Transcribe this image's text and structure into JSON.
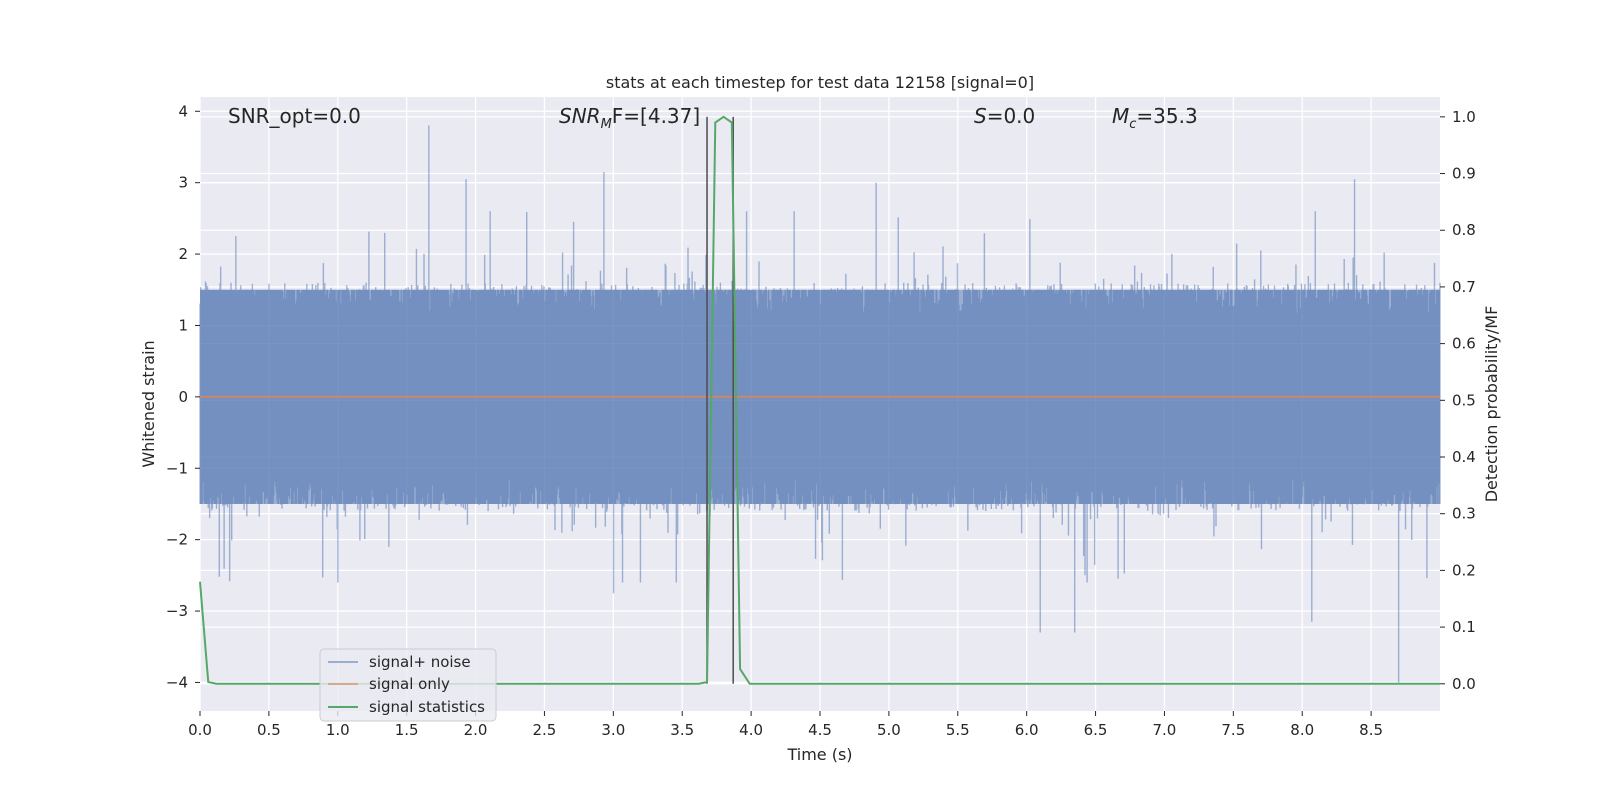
{
  "chart_data": {
    "type": "line",
    "title": "stats at each timestep for test data 12158 [signal=0]",
    "xlabel": "Time (s)",
    "ylabel": "Whitened strain",
    "y2label": "Detection probability/MF",
    "xlim": [
      0,
      9.0
    ],
    "ylim": [
      -4.4,
      4.2
    ],
    "y2lim": [
      -0.048,
      1.035
    ],
    "x_ticks": [
      0.0,
      0.5,
      1.0,
      1.5,
      2.0,
      2.5,
      3.0,
      3.5,
      4.0,
      4.5,
      5.0,
      5.5,
      6.0,
      6.5,
      7.0,
      7.5,
      8.0,
      8.5
    ],
    "x_tick_labels": [
      "0.0",
      "0.5",
      "1.0",
      "1.5",
      "2.0",
      "2.5",
      "3.0",
      "3.5",
      "4.0",
      "4.5",
      "5.0",
      "5.5",
      "6.0",
      "6.5",
      "7.0",
      "7.5",
      "8.0",
      "8.5"
    ],
    "y_ticks": [
      -4,
      -3,
      -2,
      -1,
      0,
      1,
      2,
      3,
      4
    ],
    "y_tick_labels": [
      "−4",
      "−3",
      "−2",
      "−1",
      "0",
      "1",
      "2",
      "3",
      "4"
    ],
    "y2_ticks": [
      0.0,
      0.1,
      0.2,
      0.3,
      0.4,
      0.5,
      0.6,
      0.7,
      0.8,
      0.9,
      1.0
    ],
    "y2_tick_labels": [
      "0.0",
      "0.1",
      "0.2",
      "0.3",
      "0.4",
      "0.5",
      "0.6",
      "0.7",
      "0.8",
      "0.9",
      "1.0"
    ],
    "grid": true,
    "legend_position": "bottom-left",
    "series": [
      {
        "name": "signal+ noise",
        "color": "#4c72b0",
        "axis": "left",
        "kind": "noise",
        "x_range": [
          0,
          9.0
        ],
        "samples": 1800,
        "envelope": [
          -1.5,
          1.5
        ],
        "peaks": [
          [
            1.66,
            3.8
          ],
          [
            1.93,
            3.05
          ],
          [
            2.93,
            3.15
          ],
          [
            4.91,
            3.0
          ],
          [
            8.38,
            3.05
          ],
          [
            3.0,
            -2.75
          ],
          [
            6.1,
            -3.3
          ],
          [
            6.35,
            -3.3
          ],
          [
            8.07,
            -3.15
          ],
          [
            8.7,
            -4.0
          ]
        ]
      },
      {
        "name": "signal only",
        "color": "#dd8452",
        "axis": "left",
        "x": [
          0.0,
          9.0
        ],
        "y": [
          0.0,
          0.0
        ]
      },
      {
        "name": "signal statistics",
        "color": "#55a868",
        "axis": "right",
        "x": [
          0.0,
          0.06,
          0.12,
          3.62,
          3.68,
          3.74,
          3.8,
          3.86,
          3.92,
          3.99,
          9.0
        ],
        "y": [
          0.18,
          0.003,
          0.0,
          0.0,
          0.003,
          0.99,
          1.0,
          0.99,
          0.026,
          0.0,
          0.0
        ]
      }
    ],
    "vertical_markers": [
      3.68,
      3.87
    ]
  },
  "annotations": {
    "snr_opt": "SNR_opt=0.0",
    "snr_mf_base": "SNR",
    "snr_mf_sub": "M",
    "snr_mf_rest": "F=[4.37]",
    "s_italic": "S",
    "s_rest": "=0.0",
    "mc_italic": "M",
    "mc_sub": "c",
    "mc_rest": "=35.3"
  },
  "colors": {
    "axes_background": "#eaeaf2",
    "grid": "#ffffff",
    "marker_line": "#4d4d4d"
  }
}
